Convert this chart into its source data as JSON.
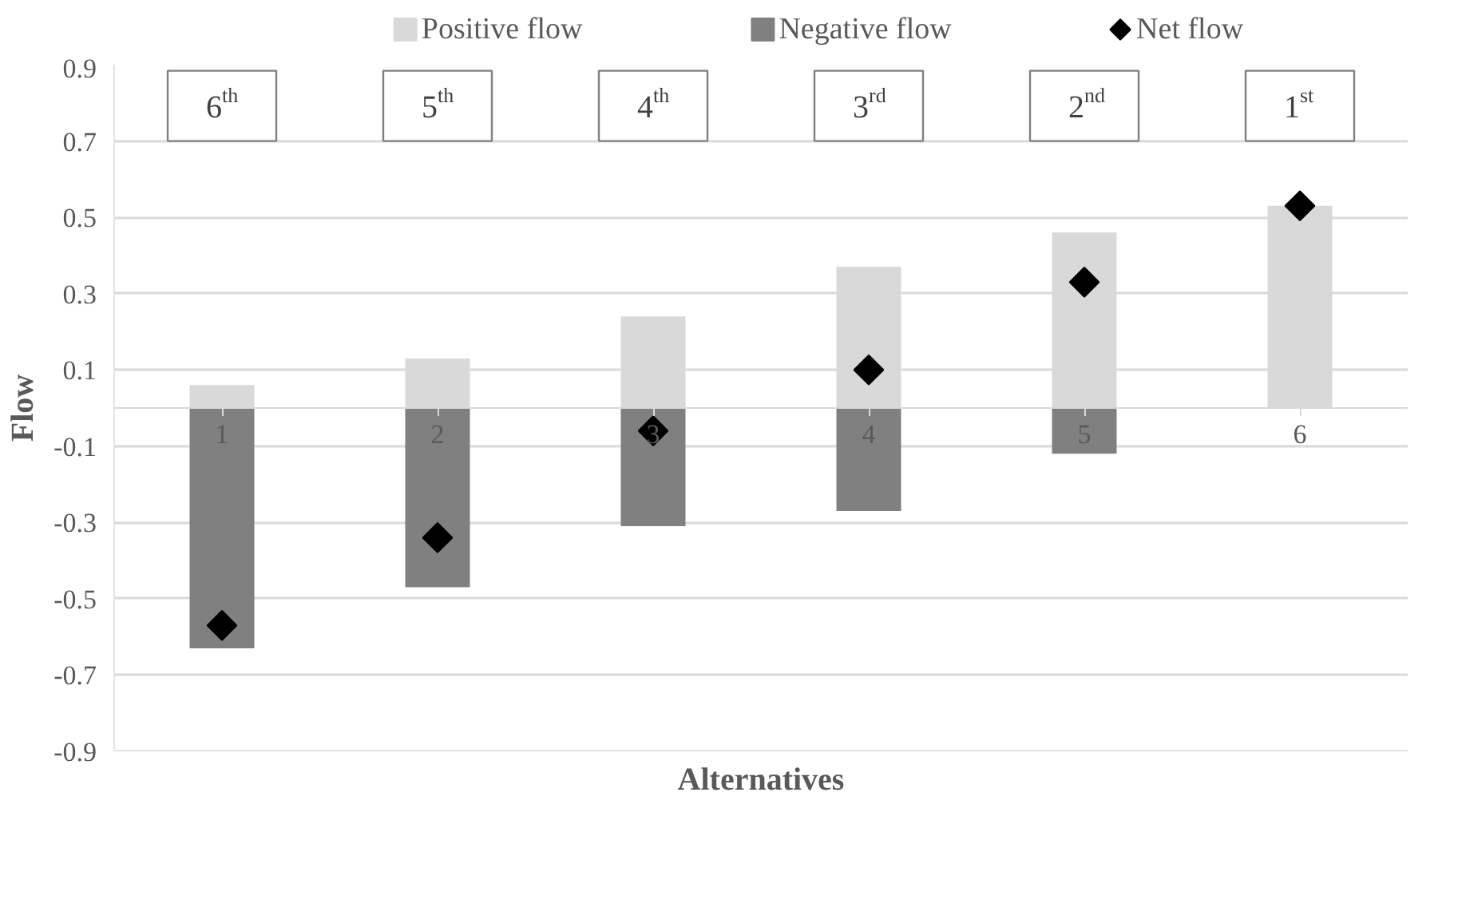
{
  "chart_data": {
    "type": "bar",
    "xlabel": "Alternatives",
    "ylabel": "Flow",
    "categories": [
      "1",
      "2",
      "3",
      "4",
      "5",
      "6"
    ],
    "stacked": true,
    "series": [
      {
        "name": "Positive flow",
        "color": "#d9d9d9",
        "values": [
          0.06,
          0.13,
          0.24,
          0.37,
          0.46,
          0.53
        ]
      },
      {
        "name": "Negative flow",
        "color": "#808080",
        "values": [
          -0.63,
          -0.47,
          -0.31,
          -0.27,
          -0.12,
          0
        ]
      },
      {
        "name": "Net  flow",
        "type": "scatter",
        "color": "#000000",
        "values": [
          -0.57,
          -0.34,
          -0.06,
          0.1,
          0.33,
          0.53
        ]
      }
    ],
    "marker": "diamond",
    "ylim": [
      -0.9,
      0.9
    ],
    "yticks": [
      -0.9,
      -0.7,
      -0.5,
      -0.3,
      -0.1,
      0.1,
      0.3,
      0.5,
      0.7,
      0.9
    ],
    "grid": "y",
    "legend": "top",
    "annotations": [
      "6$^{th}$",
      "5$^{th}$",
      "4$^{th}$",
      "3$^{rd}$",
      "2$^{nd}$",
      "1$^{st}$"
    ]
  }
}
